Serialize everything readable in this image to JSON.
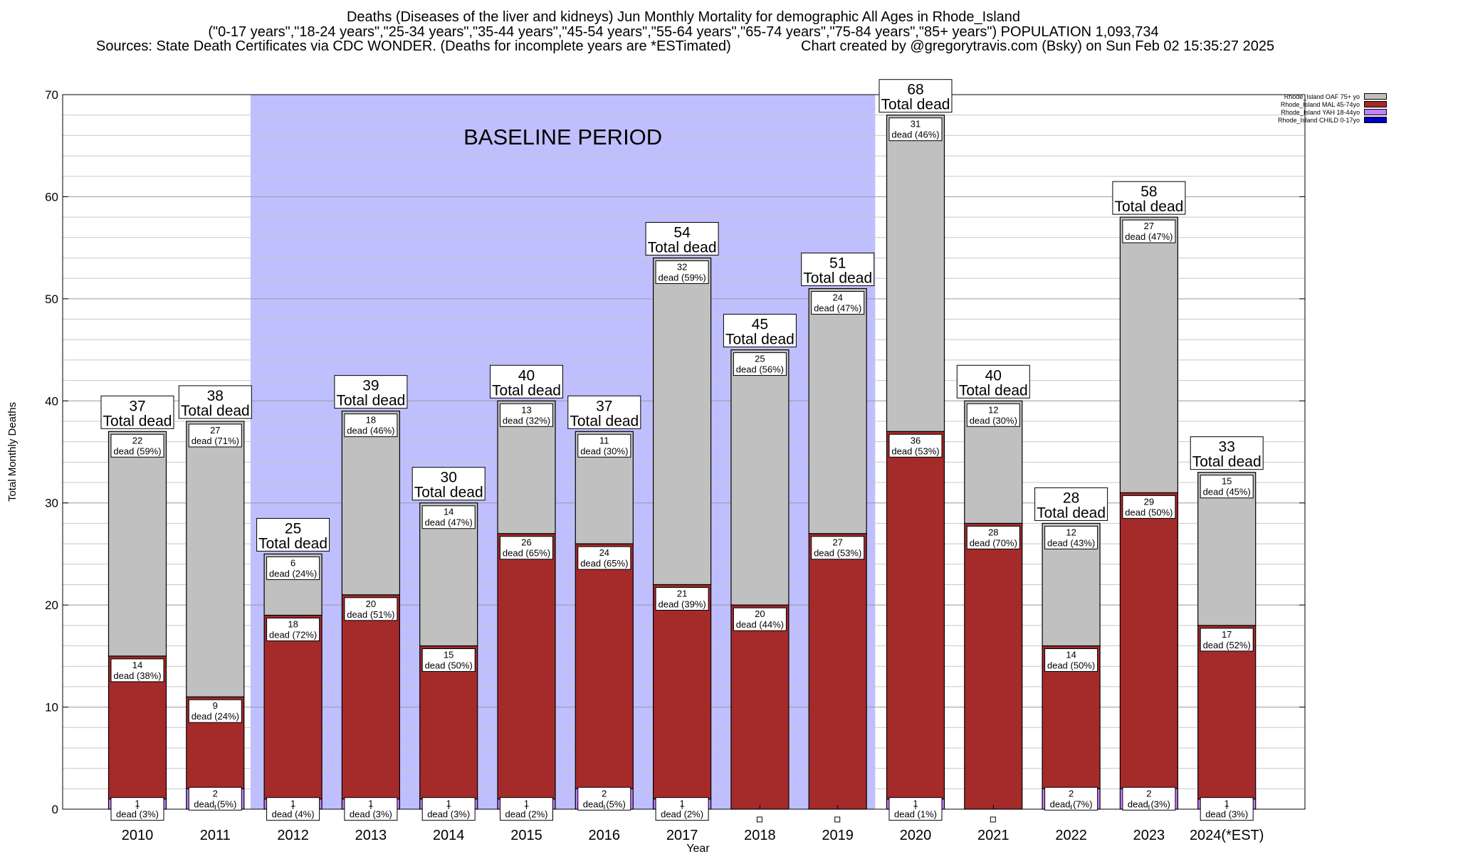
{
  "title": {
    "line1": "Deaths (Diseases of the liver and kidneys) Jun Monthly Mortality for demographic All Ages in Rhode_Island",
    "line2": "(\"0-17 years\",\"18-24 years\",\"25-34 years\",\"35-44 years\",\"45-54 years\",\"55-64 years\",\"65-74 years\",\"75-84 years\",\"85+ years\") POPULATION 1,093,734",
    "sources": "Sources: State Death Certificates via CDC WONDER. (Deaths for incomplete years are *ESTimated)",
    "credit": "Chart created by @gregorytravis.com (Bsky) on Sun Feb 02 15:35:27 2025"
  },
  "chart_data": {
    "type": "bar",
    "stacked": true,
    "xlabel": "Year",
    "ylabel": "Total Monthly Deaths",
    "ylim": [
      0,
      70
    ],
    "yticks": [
      0,
      10,
      20,
      30,
      40,
      50,
      60,
      70
    ],
    "grid": true,
    "categories": [
      "2010",
      "2011",
      "2012",
      "2013",
      "2014",
      "2015",
      "2016",
      "2017",
      "2018",
      "2019",
      "2020",
      "2021",
      "2022",
      "2023",
      "2024(*EST)"
    ],
    "series": [
      {
        "name": "Rhode_Island CHILD 0-17yo",
        "color": "#0000c0",
        "values": [
          0,
          0,
          0,
          0,
          0,
          0,
          0,
          0,
          0,
          0,
          0,
          0,
          0,
          0,
          0
        ]
      },
      {
        "name": "Rhode_Island YAH 18-44yo",
        "color": "#c080ff",
        "values": [
          1,
          2,
          1,
          1,
          1,
          1,
          2,
          1,
          0,
          0,
          1,
          0,
          2,
          2,
          1
        ]
      },
      {
        "name": "Rhode_Island MAL 45-74yo",
        "color": "#a52a2a",
        "values": [
          14,
          9,
          18,
          20,
          15,
          26,
          24,
          21,
          20,
          27,
          36,
          28,
          14,
          29,
          17
        ]
      },
      {
        "name": "Rhode_Island OAF 75+ yo",
        "color": "#c0c0c0",
        "values": [
          22,
          27,
          6,
          18,
          14,
          13,
          11,
          32,
          25,
          24,
          31,
          12,
          12,
          27,
          15
        ]
      }
    ],
    "totals": [
      37,
      38,
      25,
      39,
      30,
      40,
      37,
      54,
      45,
      51,
      68,
      40,
      28,
      58,
      33
    ],
    "segment_labels": {
      "yah": [
        "1\ndead (3%)",
        "2\ndead (5%)",
        "1\ndead (4%)",
        "1\ndead (3%)",
        "1\ndead (3%)",
        "1\ndead (2%)",
        "2\ndead (5%)",
        "1\ndead (2%)",
        "",
        "",
        "1\ndead (1%)",
        "",
        "2\ndead (7%)",
        "2\ndead (3%)",
        "1\ndead (3%)"
      ],
      "mal": [
        "14\ndead (38%)",
        "9\ndead (24%)",
        "18\ndead (72%)",
        "20\ndead (51%)",
        "15\ndead (50%)",
        "26\ndead (65%)",
        "24\ndead (65%)",
        "21\ndead (39%)",
        "20\ndead (44%)",
        "27\ndead (53%)",
        "36\ndead (53%)",
        "28\ndead (70%)",
        "14\ndead (50%)",
        "29\ndead (50%)",
        "17\ndead (52%)"
      ],
      "oaf": [
        "22\ndead (59%)",
        "27\ndead (71%)",
        "6\ndead (24%)",
        "18\ndead (46%)",
        "14\ndead (47%)",
        "13\ndead (32%)",
        "11\ndead (30%)",
        "32\ndead (59%)",
        "25\ndead (56%)",
        "24\ndead (47%)",
        "31\ndead (46%)",
        "12\ndead (30%)",
        "12\ndead (43%)",
        "27\ndead (47%)",
        "15\ndead (45%)"
      ]
    },
    "total_label_suffix": "Total dead",
    "baseline": {
      "label": "BASELINE PERIOD",
      "from": "2012",
      "to": "2019",
      "color": "#bfbfff"
    }
  },
  "legend": {
    "placement": "top-right",
    "items": [
      {
        "label": "Rhode_Island OAF 75+ yo",
        "color": "#c0c0c0"
      },
      {
        "label": "Rhode_Island MAL 45-74yo",
        "color": "#a52a2a"
      },
      {
        "label": "Rhode_Island YAH 18-44yo",
        "color": "#c080ff"
      },
      {
        "label": "Rhode_Island CHILD 0-17yo",
        "color": "#0000c0"
      }
    ]
  }
}
